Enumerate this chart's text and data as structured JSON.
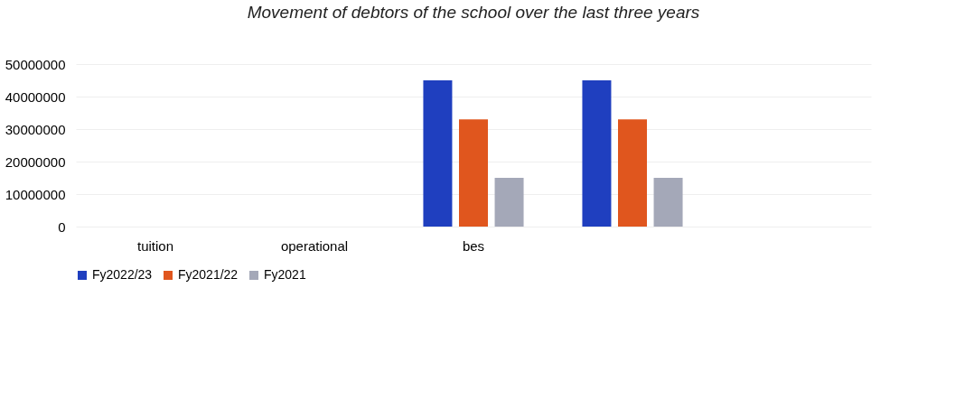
{
  "chart_data": {
    "type": "bar",
    "title": "Movement of debtors of the school over the last three years",
    "categories": [
      "tuition",
      "operational",
      "bes",
      null,
      null
    ],
    "series": [
      {
        "name": "Fy2022/23",
        "color": "#1f3fbf",
        "values": [
          null,
          null,
          45000000,
          45000000,
          null
        ]
      },
      {
        "name": "Fy2021/22",
        "color": "#e0561e",
        "values": [
          null,
          null,
          33000000,
          33000000,
          null
        ]
      },
      {
        "name": "Fy2021",
        "color": "#a4a8b8",
        "values": [
          null,
          null,
          15000000,
          15000000,
          null
        ]
      }
    ],
    "ylim": [
      0,
      50000000
    ],
    "yticks": [
      0,
      10000000,
      20000000,
      30000000,
      40000000,
      50000000
    ],
    "grid": "y",
    "legend": "bottom"
  }
}
